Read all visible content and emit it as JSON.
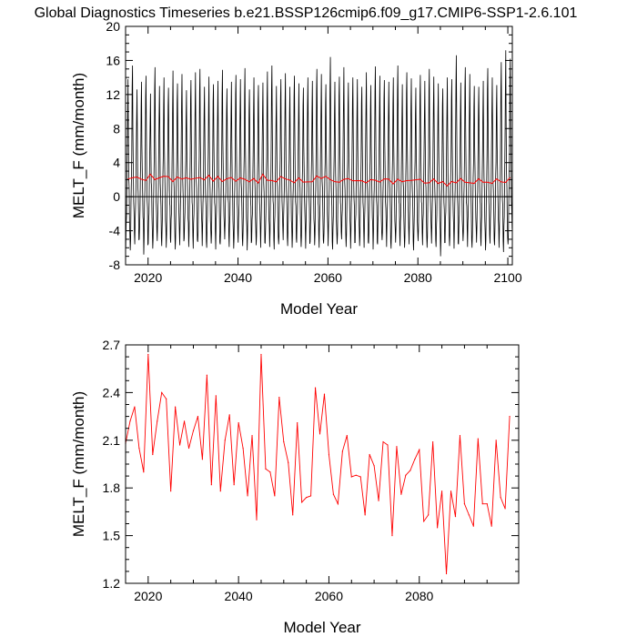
{
  "title": "Global Diagnostics Timeseries b.e21.BSSP126cmip6.f09_g17.CMIP6-SSP1-2.6.101",
  "colors": {
    "monthly": "#000000",
    "annual": "#ff0000",
    "frame": "#000000",
    "zero_line": "#000000"
  },
  "chart_data": [
    {
      "type": "line",
      "xlabel": "Model Year",
      "ylabel": "MELT_F (mm/month)",
      "xlim": [
        2015,
        2101
      ],
      "ylim": [
        -8,
        20
      ],
      "x_ticks": [
        2020,
        2040,
        2060,
        2080,
        2100
      ],
      "y_ticks": [
        -8,
        -4,
        0,
        4,
        8,
        12,
        16,
        20
      ],
      "zero_line": true,
      "grid": false,
      "series": [
        {
          "style": "monthly",
          "color": "#000000",
          "seasonal_cycle": [
            -4.6,
            -3.0,
            -1.0,
            1.5,
            5.0,
            10.5,
            13.5,
            7.0,
            2.5,
            0.2,
            -1.5,
            -3.5
          ],
          "annual_peak": [
            13.8,
            15.4,
            12.6,
            13.5,
            14.2,
            12.1,
            15.2,
            13.0,
            14.0,
            12.8,
            14.8,
            13.3,
            14.4,
            12.5,
            13.7,
            14.6,
            15.0,
            12.9,
            14.1,
            13.2,
            13.6,
            14.9,
            12.7,
            13.5,
            14.3,
            13.8,
            15.1,
            12.6,
            14.0,
            13.1,
            13.4,
            14.7,
            15.4,
            13.0,
            13.8,
            14.5,
            12.9,
            14.2,
            13.3,
            12.8,
            14.0,
            13.6,
            15.0,
            14.4,
            13.2,
            16.4,
            13.5,
            14.1,
            15.2,
            13.4,
            14.0,
            13.8,
            12.9,
            14.6,
            13.1,
            15.3,
            14.2,
            13.7,
            13.5,
            14.0,
            15.4,
            13.2,
            14.6,
            13.9,
            12.8,
            14.3,
            13.6,
            15.0,
            14.1,
            13.3,
            12.7,
            14.0,
            13.8,
            16.6,
            13.4,
            15.2,
            14.4,
            13.0,
            12.9,
            13.6,
            15.1,
            14.0,
            13.1,
            15.8,
            17.2,
            16.2
          ],
          "annual_min": [
            -6.0,
            -6.3,
            -5.6,
            -5.0,
            -6.8,
            -5.5,
            -6.1,
            -5.2,
            -5.8,
            -6.0,
            -5.4,
            -6.2,
            -5.7,
            -4.9,
            -5.9,
            -6.1,
            -5.3,
            -5.8,
            -6.0,
            -5.5,
            -6.2,
            -5.6,
            -5.0,
            -5.9,
            -6.1,
            -5.4,
            -5.8,
            -6.3,
            -5.2,
            -5.7,
            -6.0,
            -5.5,
            -5.9,
            -6.2,
            -5.6,
            -5.1,
            -5.8,
            -6.0,
            -5.4,
            -5.9,
            -6.1,
            -5.3,
            -5.7,
            -6.0,
            -5.5,
            -5.8,
            -6.2,
            -5.6,
            -5.0,
            -5.9,
            -6.1,
            -5.4,
            -5.8,
            -6.0,
            -5.5,
            -6.2,
            -5.6,
            -5.1,
            -5.9,
            -6.1,
            -5.4,
            -5.8,
            -6.0,
            -5.6,
            -6.3,
            -5.2,
            -5.7,
            -6.0,
            -5.5,
            -5.9,
            -7.0,
            -5.4,
            -5.8,
            -6.1,
            -5.6,
            -5.2,
            -5.9,
            -6.0,
            -5.4,
            -5.8,
            -6.3,
            -5.5,
            -5.7,
            -6.0,
            -6.5,
            -5.6
          ]
        },
        {
          "style": "annual_mean",
          "color": "#ff0000",
          "source": "panel_2"
        }
      ]
    },
    {
      "type": "line",
      "xlabel": "Model Year",
      "ylabel": "MELT_F (mm/month)",
      "xlim": [
        2015,
        2102
      ],
      "ylim": [
        1.2,
        2.7
      ],
      "x_ticks": [
        2020,
        2040,
        2060,
        2080
      ],
      "y_ticks": [
        1.2,
        1.5,
        1.8,
        2.1,
        2.4,
        2.7
      ],
      "grid": false,
      "series": [
        {
          "style": "annual_mean",
          "color": "#ff0000",
          "x": [
            2015,
            2016,
            2017,
            2018,
            2019,
            2020,
            2021,
            2022,
            2023,
            2024,
            2025,
            2026,
            2027,
            2028,
            2029,
            2030,
            2031,
            2032,
            2033,
            2034,
            2035,
            2036,
            2037,
            2038,
            2039,
            2040,
            2041,
            2042,
            2043,
            2044,
            2045,
            2046,
            2047,
            2048,
            2049,
            2050,
            2051,
            2052,
            2053,
            2054,
            2055,
            2056,
            2057,
            2058,
            2059,
            2060,
            2061,
            2062,
            2063,
            2064,
            2065,
            2066,
            2067,
            2068,
            2069,
            2070,
            2071,
            2072,
            2073,
            2074,
            2075,
            2076,
            2077,
            2078,
            2079,
            2080,
            2081,
            2082,
            2083,
            2084,
            2085,
            2086,
            2087,
            2088,
            2089,
            2090,
            2091,
            2092,
            2093,
            2094,
            2095,
            2096,
            2097,
            2098,
            2099,
            2100
          ],
          "values": [
            2.08,
            2.22,
            2.31,
            2.05,
            1.9,
            2.64,
            2.01,
            2.22,
            2.4,
            2.36,
            1.78,
            2.31,
            2.07,
            2.22,
            2.05,
            2.16,
            2.25,
            1.98,
            2.51,
            1.82,
            2.38,
            1.78,
            2.1,
            2.26,
            1.82,
            2.21,
            2.05,
            1.75,
            2.13,
            1.6,
            2.64,
            1.92,
            1.9,
            1.75,
            2.37,
            2.09,
            1.96,
            1.63,
            2.21,
            1.71,
            1.74,
            1.75,
            2.43,
            2.14,
            2.39,
            2.01,
            1.76,
            1.7,
            2.03,
            2.13,
            1.87,
            1.88,
            1.87,
            1.63,
            2.01,
            1.94,
            1.72,
            2.09,
            2.07,
            1.5,
            2.06,
            1.76,
            1.88,
            1.91,
            1.98,
            2.04,
            1.59,
            1.63,
            2.09,
            1.55,
            1.78,
            1.26,
            1.78,
            1.62,
            2.13,
            1.7,
            1.63,
            1.56,
            2.11,
            1.7,
            1.7,
            1.56,
            2.1,
            1.74,
            1.67,
            2.25
          ]
        }
      ]
    }
  ]
}
